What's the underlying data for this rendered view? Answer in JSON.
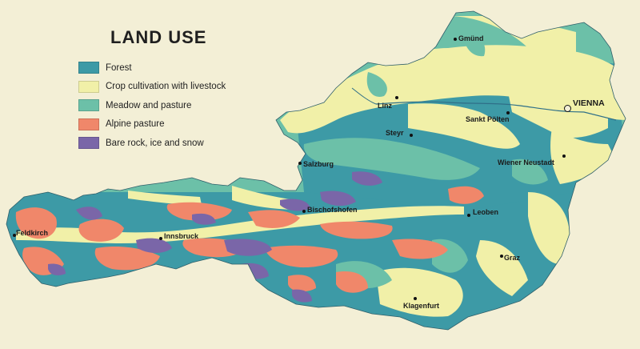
{
  "map": {
    "title": "LAND USE",
    "legend": [
      {
        "label": "Forest",
        "color": "#3d9aa6"
      },
      {
        "label": "Crop cultivation with livestock",
        "color": "#f1f0a8"
      },
      {
        "label": "Meadow and pasture",
        "color": "#6cc0a8"
      },
      {
        "label": "Alpine pasture",
        "color": "#f0876a"
      },
      {
        "label": "Bare rock, ice and snow",
        "color": "#7a66a8"
      }
    ],
    "cities": {
      "gmund": "Gmünd",
      "vienna": "VIENNA",
      "linz": "Linz",
      "sankt_polten": "Sankt Pölten",
      "steyr": "Steyr",
      "salzburg": "Salzburg",
      "wiener_neustadt": "Wiener Neustadt",
      "bischofshofen": "Bischofshofen",
      "leoben": "Leoben",
      "feldkirch": "Feldkirch",
      "innsbruck": "Innsbruck",
      "graz": "Graz",
      "klagenfurt": "Klagenfurt"
    }
  }
}
